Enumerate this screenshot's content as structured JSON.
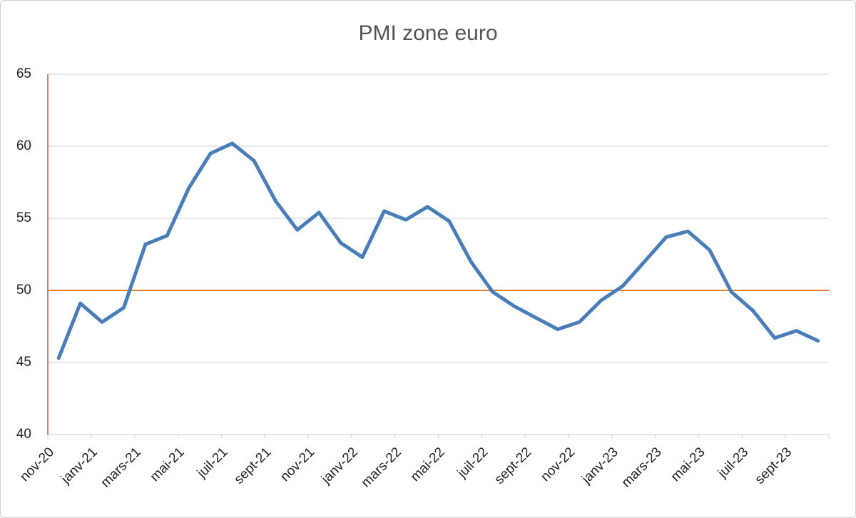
{
  "chart_data": {
    "type": "line",
    "title": "PMI zone euro",
    "categories": [
      "nov-20",
      null,
      "janv-21",
      null,
      "mars-21",
      null,
      "mai-21",
      null,
      "juil-21",
      null,
      "sept-21",
      null,
      "nov-21",
      null,
      "janv-22",
      null,
      "mars-22",
      null,
      "mai-22",
      null,
      "juil-22",
      null,
      "sept-22",
      null,
      "nov-22",
      null,
      "janv-23",
      null,
      "mars-23",
      null,
      "mai-23",
      null,
      "juil-23",
      null,
      "sept-23",
      null
    ],
    "series": [
      {
        "name": "PMI",
        "color": "#4a7ebb",
        "values": [
          45.3,
          49.1,
          47.8,
          48.8,
          53.2,
          53.8,
          57.1,
          59.5,
          60.2,
          59.0,
          56.2,
          54.2,
          55.4,
          53.3,
          52.3,
          55.5,
          54.9,
          55.8,
          54.8,
          52.0,
          49.9,
          48.9,
          48.1,
          47.3,
          47.8,
          49.3,
          50.3,
          52.0,
          53.7,
          54.1,
          52.8,
          49.9,
          48.6,
          46.7,
          47.2,
          46.5
        ]
      }
    ],
    "reference_line": {
      "value": 50,
      "color": "#ed7d31"
    },
    "ylim": [
      40,
      65
    ],
    "yticks": [
      40,
      45,
      50,
      55,
      60,
      65
    ],
    "grid": true
  }
}
